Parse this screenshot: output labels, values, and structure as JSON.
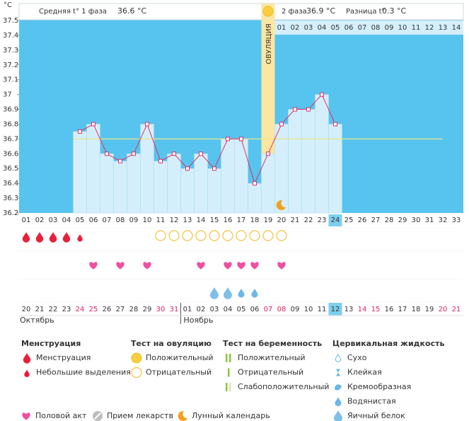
{
  "header": {
    "phase1_label": "Средняя t° 1 фаза",
    "phase1_value": "36.6 °C",
    "phase2_label": "2 фаза",
    "phase2_value": "36.9 °C",
    "diff_label": "Разница t°",
    "diff_value": "0.3 °C"
  },
  "chart_data": {
    "type": "line",
    "y_unit": "°C",
    "categories": [
      "01",
      "02",
      "03",
      "04",
      "05",
      "06",
      "07",
      "08",
      "09",
      "10",
      "11",
      "12",
      "13",
      "14",
      "15",
      "16",
      "17",
      "18",
      "19",
      "20",
      "21",
      "22",
      "23",
      "24",
      "25",
      "26",
      "27",
      "28",
      "29",
      "30",
      "31",
      "32",
      "33"
    ],
    "values": [
      null,
      null,
      null,
      null,
      36.75,
      36.8,
      36.6,
      36.55,
      36.6,
      36.8,
      36.55,
      36.6,
      36.5,
      36.6,
      36.5,
      36.7,
      36.7,
      36.4,
      36.6,
      36.8,
      36.9,
      36.9,
      37,
      36.8,
      null,
      null,
      null,
      null,
      null,
      null,
      null,
      null,
      null
    ],
    "color": "#e0306a",
    "ylim": [
      36.2,
      37.5
    ],
    "yticks": [
      36.2,
      36.3,
      36.4,
      36.5,
      36.6,
      36.7,
      36.8,
      36.9,
      37,
      37.1,
      37.2,
      37.3,
      37.4,
      37.5
    ],
    "coverline": 36.7,
    "ovulation_day": "19",
    "ovulation_label": "ОВУЛЯЦИЯ",
    "post_ovulation_days": [
      "01",
      "02",
      "03",
      "04",
      "05",
      "06",
      "07",
      "08",
      "09",
      "10",
      "11",
      "12",
      "13",
      "14"
    ],
    "today": "24",
    "moon_day": "20",
    "dates": [
      "20",
      "21",
      "22",
      "23",
      "24",
      "25",
      "26",
      "27",
      "28",
      "29",
      "30",
      "31",
      "01",
      "02",
      "03",
      "04",
      "05",
      "06",
      "07",
      "08",
      "09",
      "10",
      "11",
      "12",
      "13",
      "14",
      "15",
      "16",
      "17",
      "18",
      "19",
      "20",
      "21"
    ],
    "weekends": [
      false,
      false,
      false,
      false,
      true,
      true,
      false,
      false,
      false,
      false,
      true,
      true,
      false,
      false,
      false,
      false,
      false,
      false,
      true,
      true,
      false,
      false,
      false,
      false,
      false,
      true,
      true,
      false,
      false,
      false,
      false,
      true,
      true
    ],
    "months": [
      "Октябрь",
      "Ноябрь"
    ],
    "markers": {
      "menstruation": [
        "01",
        "02",
        "03",
        "04"
      ],
      "spotting": [
        "05"
      ],
      "ovulation_test_negative": [
        "11",
        "12",
        "13",
        "14",
        "15",
        "16",
        "17",
        "18",
        "19",
        "20"
      ],
      "intercourse": [
        "06",
        "08",
        "10",
        "14",
        "16",
        "17",
        "18",
        "20"
      ],
      "cervical_egg_white": [
        "15",
        "16"
      ],
      "cervical_watery": [
        "17",
        "18"
      ]
    }
  },
  "legend": {
    "sections": [
      {
        "title": "Менструация",
        "items": [
          "Менструация",
          "Небольшие выделения"
        ]
      },
      {
        "title": "Тест на овуляцию",
        "items": [
          "Положительный",
          "Отрицательный"
        ]
      },
      {
        "title": "Тест на беременность",
        "items": [
          "Положительный",
          "Отрицательный",
          "Слабоположительный"
        ]
      },
      {
        "title": "Цервикальная жидкость",
        "items": [
          "Сухо",
          "Клейкая",
          "Кремообразная",
          "Водянистая",
          "Яичный белок"
        ]
      }
    ],
    "bottom": [
      "Половой акт",
      "Прием лекарств",
      "Лунный календарь"
    ]
  }
}
